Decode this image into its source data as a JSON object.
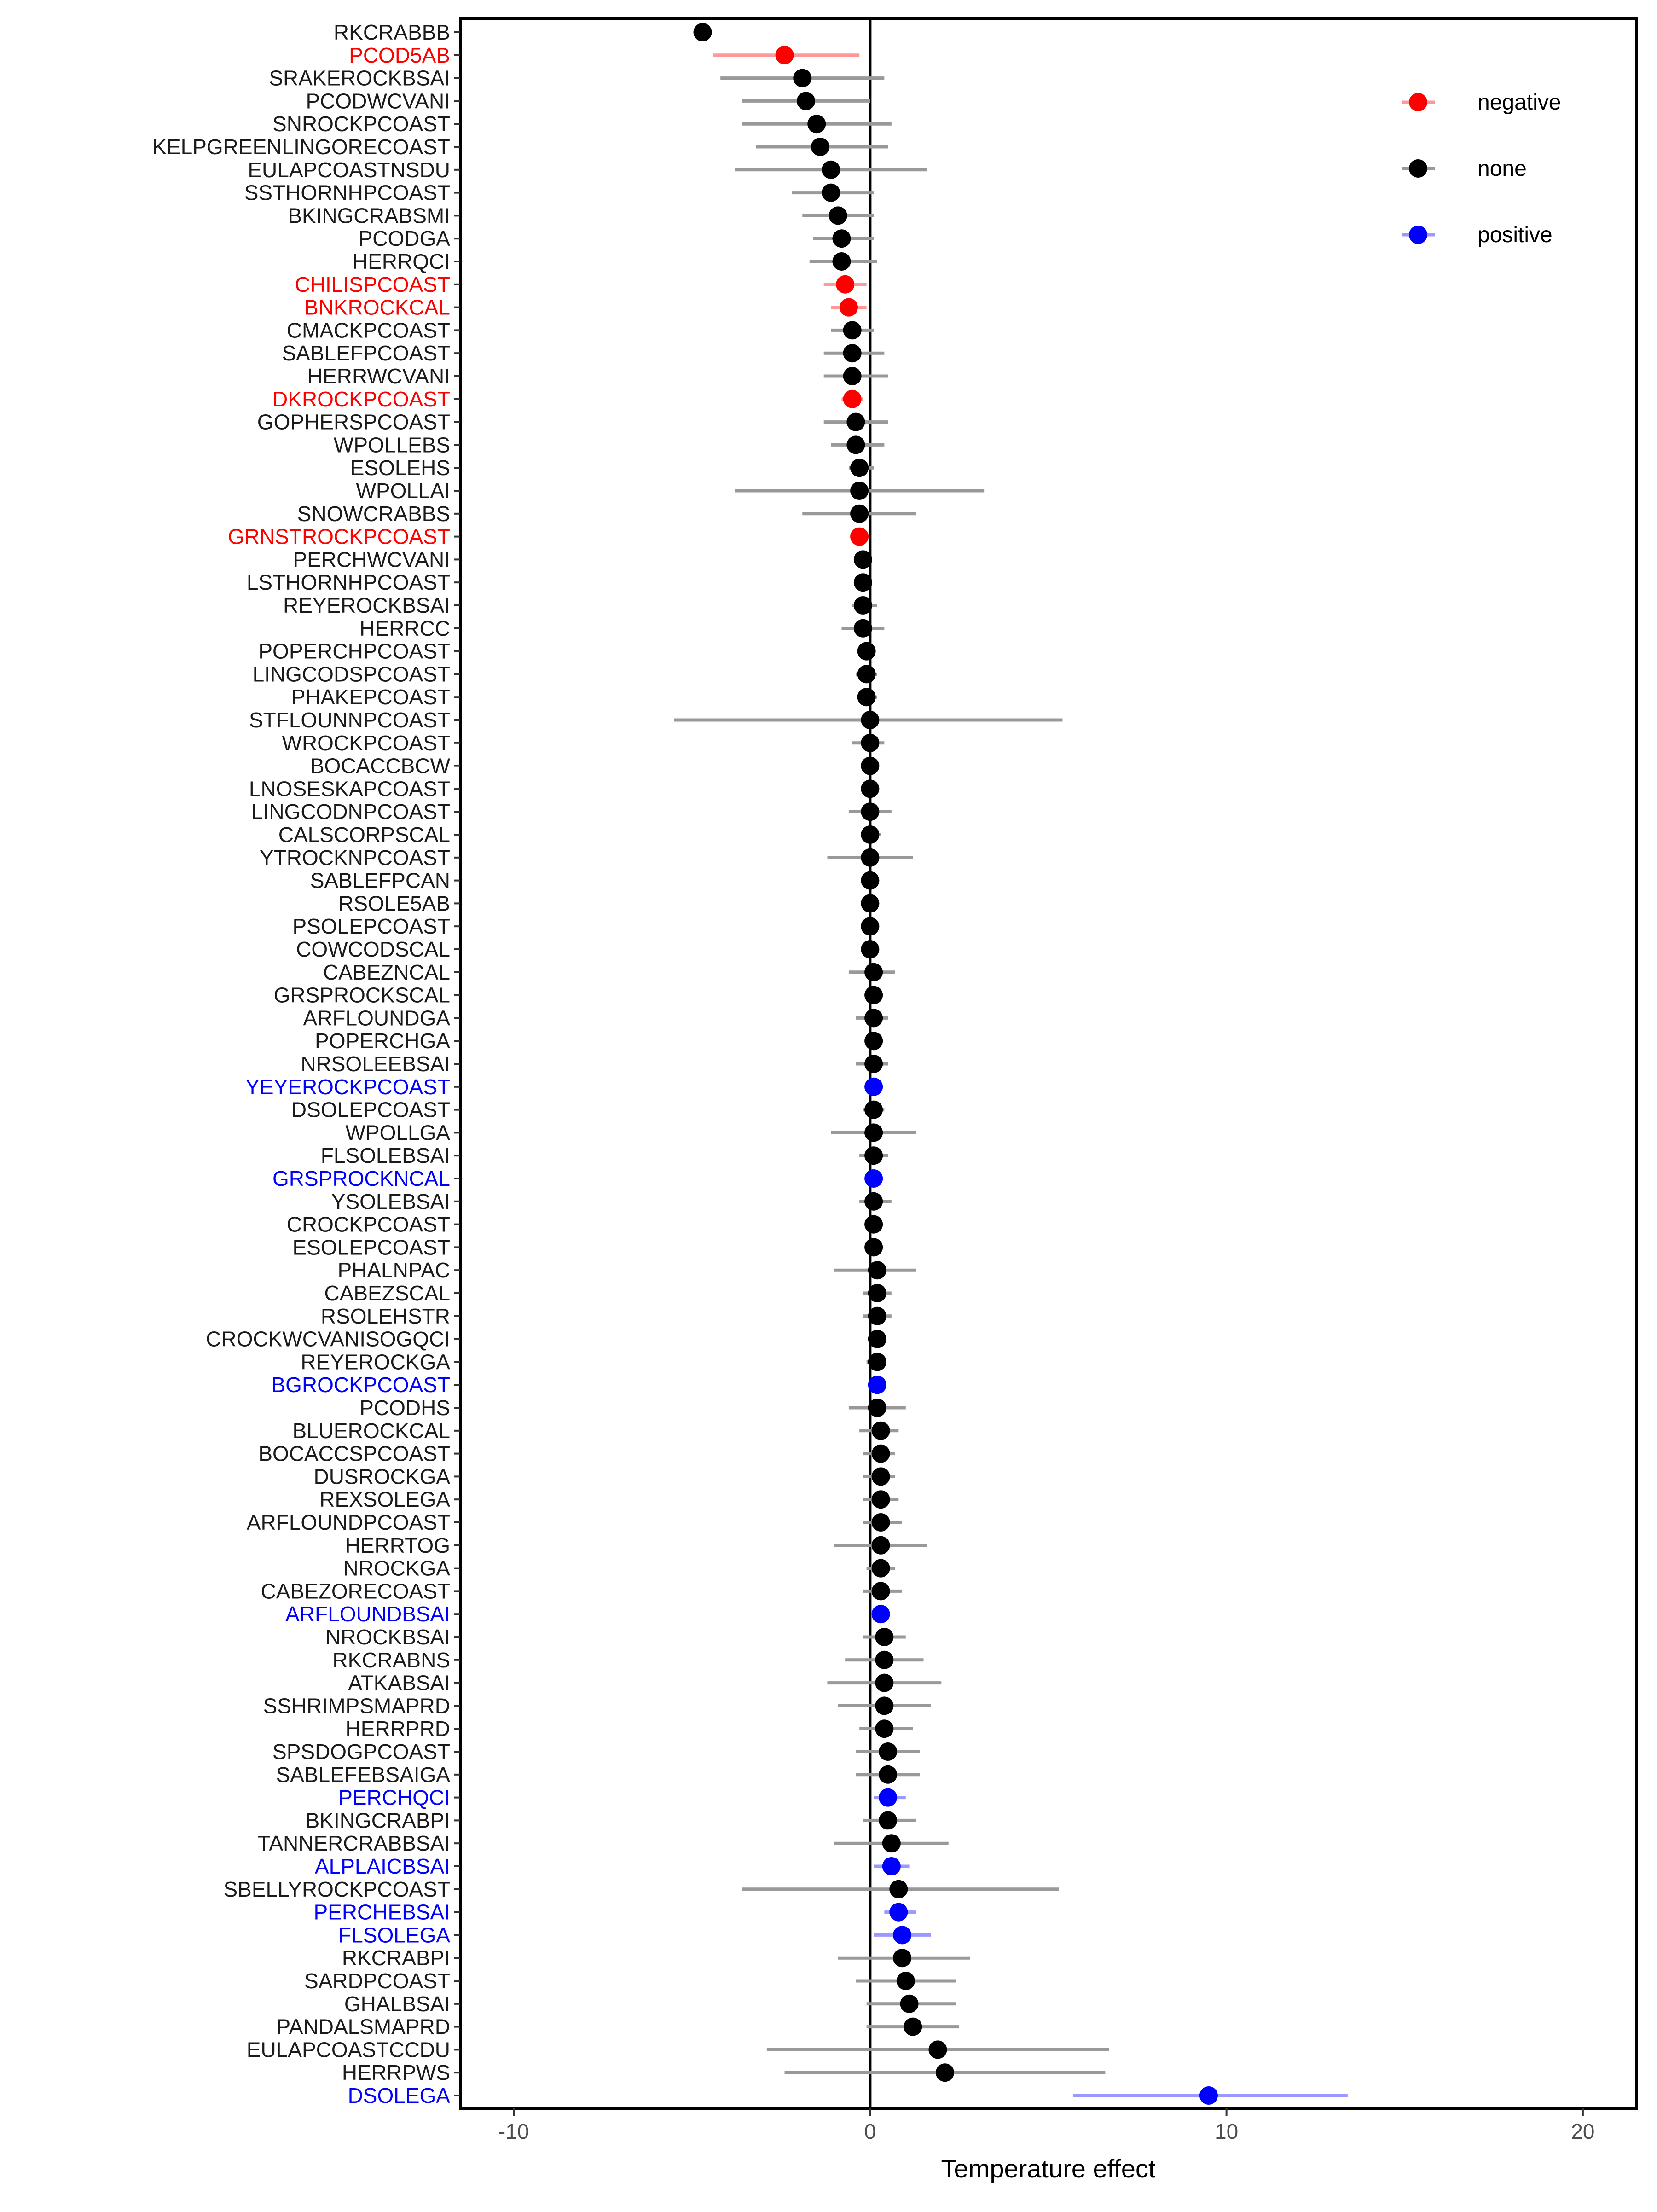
{
  "chart_data": {
    "type": "scatter",
    "subtype": "forest-plot",
    "title": "",
    "xlabel": "Temperature effect",
    "ylabel": "",
    "xlim": [
      -11.5,
      21.5
    ],
    "xticks": [
      -10,
      0,
      10,
      20
    ],
    "xtick_labels": [
      "-10",
      "0",
      "10",
      "20"
    ],
    "reference_line_x": 0,
    "grid": false,
    "legend_position": "top-right",
    "legend": [
      {
        "key": "negative",
        "label": "negative",
        "color": "#ff0000",
        "line_color": "#ff9999"
      },
      {
        "key": "none",
        "label": "none",
        "color": "#000000",
        "line_color": "#999999"
      },
      {
        "key": "positive",
        "label": "positive",
        "color": "#0000ff",
        "line_color": "#9999ff"
      }
    ],
    "points": [
      {
        "label": "RKCRABBB",
        "est": -4.7,
        "lo": -4.7,
        "hi": -4.7,
        "group": "none"
      },
      {
        "label": "PCOD5AB",
        "est": -2.4,
        "lo": -4.4,
        "hi": -0.3,
        "group": "negative"
      },
      {
        "label": "SRAKEROCKBSAI",
        "est": -1.9,
        "lo": -4.2,
        "hi": 0.4,
        "group": "none"
      },
      {
        "label": "PCODWCVANI",
        "est": -1.8,
        "lo": -3.6,
        "hi": 0.0,
        "group": "none"
      },
      {
        "label": "SNROCKPCOAST",
        "est": -1.5,
        "lo": -3.6,
        "hi": 0.6,
        "group": "none"
      },
      {
        "label": "KELPGREENLINGORECOAST",
        "est": -1.4,
        "lo": -3.2,
        "hi": 0.5,
        "group": "none"
      },
      {
        "label": "EULAPCOASTNSDU",
        "est": -1.1,
        "lo": -3.8,
        "hi": 1.6,
        "group": "none"
      },
      {
        "label": "SSTHORNHPCOAST",
        "est": -1.1,
        "lo": -2.2,
        "hi": 0.1,
        "group": "none"
      },
      {
        "label": "BKINGCRABSMI",
        "est": -0.9,
        "lo": -1.9,
        "hi": 0.1,
        "group": "none"
      },
      {
        "label": "PCODGA",
        "est": -0.8,
        "lo": -1.6,
        "hi": 0.1,
        "group": "none"
      },
      {
        "label": "HERRQCI",
        "est": -0.8,
        "lo": -1.7,
        "hi": 0.2,
        "group": "none"
      },
      {
        "label": "CHILISPCOAST",
        "est": -0.7,
        "lo": -1.3,
        "hi": -0.1,
        "group": "negative"
      },
      {
        "label": "BNKROCKCAL",
        "est": -0.6,
        "lo": -1.1,
        "hi": -0.1,
        "group": "negative"
      },
      {
        "label": "CMACKPCOAST",
        "est": -0.5,
        "lo": -1.1,
        "hi": 0.1,
        "group": "none"
      },
      {
        "label": "SABLEFPCOAST",
        "est": -0.5,
        "lo": -1.3,
        "hi": 0.4,
        "group": "none"
      },
      {
        "label": "HERRWCVANI",
        "est": -0.5,
        "lo": -1.3,
        "hi": 0.5,
        "group": "none"
      },
      {
        "label": "DKROCKPCOAST",
        "est": -0.5,
        "lo": -0.8,
        "hi": -0.2,
        "group": "negative"
      },
      {
        "label": "GOPHERSPCOAST",
        "est": -0.4,
        "lo": -1.3,
        "hi": 0.5,
        "group": "none"
      },
      {
        "label": "WPOLLEBS",
        "est": -0.4,
        "lo": -1.1,
        "hi": 0.4,
        "group": "none"
      },
      {
        "label": "ESOLEHS",
        "est": -0.3,
        "lo": -0.6,
        "hi": 0.1,
        "group": "none"
      },
      {
        "label": "WPOLLAI",
        "est": -0.3,
        "lo": -3.8,
        "hi": 3.2,
        "group": "none"
      },
      {
        "label": "SNOWCRABBS",
        "est": -0.3,
        "lo": -1.9,
        "hi": 1.3,
        "group": "none"
      },
      {
        "label": "GRNSTROCKPCOAST",
        "est": -0.3,
        "lo": -0.4,
        "hi": -0.1,
        "group": "negative"
      },
      {
        "label": "PERCHWCVANI",
        "est": -0.2,
        "lo": -0.3,
        "hi": -0.1,
        "group": "none"
      },
      {
        "label": "LSTHORNHPCOAST",
        "est": -0.2,
        "lo": -0.4,
        "hi": 0.0,
        "group": "none"
      },
      {
        "label": "REYEROCKBSAI",
        "est": -0.2,
        "lo": -0.5,
        "hi": 0.2,
        "group": "none"
      },
      {
        "label": "HERRCC",
        "est": -0.2,
        "lo": -0.8,
        "hi": 0.4,
        "group": "none"
      },
      {
        "label": "POPERCHPCOAST",
        "est": -0.1,
        "lo": -0.3,
        "hi": 0.1,
        "group": "none"
      },
      {
        "label": "LINGCODSPCOAST",
        "est": -0.1,
        "lo": -0.4,
        "hi": 0.2,
        "group": "none"
      },
      {
        "label": "PHAKEPCOAST",
        "est": -0.1,
        "lo": -0.3,
        "hi": 0.2,
        "group": "none"
      },
      {
        "label": "STFLOUNNPCOAST",
        "est": 0.0,
        "lo": -5.5,
        "hi": 5.4,
        "group": "none"
      },
      {
        "label": "WROCKPCOAST",
        "est": 0.0,
        "lo": -0.5,
        "hi": 0.4,
        "group": "none"
      },
      {
        "label": "BOCACCBCW",
        "est": 0.0,
        "lo": -0.1,
        "hi": 0.1,
        "group": "none"
      },
      {
        "label": "LNOSESKAPCOAST",
        "est": 0.0,
        "lo": -0.1,
        "hi": 0.1,
        "group": "none"
      },
      {
        "label": "LINGCODNPCOAST",
        "est": 0.0,
        "lo": -0.6,
        "hi": 0.6,
        "group": "none"
      },
      {
        "label": "CALSCORPSCAL",
        "est": 0.0,
        "lo": -0.2,
        "hi": 0.3,
        "group": "none"
      },
      {
        "label": "YTROCKNPCOAST",
        "est": 0.0,
        "lo": -1.2,
        "hi": 1.2,
        "group": "none"
      },
      {
        "label": "SABLEFPCAN",
        "est": 0.0,
        "lo": -0.1,
        "hi": 0.2,
        "group": "none"
      },
      {
        "label": "RSOLE5AB",
        "est": 0.0,
        "lo": -0.1,
        "hi": 0.1,
        "group": "none"
      },
      {
        "label": "PSOLEPCOAST",
        "est": 0.0,
        "lo": -0.1,
        "hi": 0.2,
        "group": "none"
      },
      {
        "label": "COWCODSCAL",
        "est": 0.0,
        "lo": -0.1,
        "hi": 0.2,
        "group": "none"
      },
      {
        "label": "CABEZNCAL",
        "est": 0.1,
        "lo": -0.6,
        "hi": 0.7,
        "group": "none"
      },
      {
        "label": "GRSPROCKSCAL",
        "est": 0.1,
        "lo": -0.1,
        "hi": 0.2,
        "group": "none"
      },
      {
        "label": "ARFLOUNDGA",
        "est": 0.1,
        "lo": -0.4,
        "hi": 0.5,
        "group": "none"
      },
      {
        "label": "POPERCHGA",
        "est": 0.1,
        "lo": -0.1,
        "hi": 0.2,
        "group": "none"
      },
      {
        "label": "NRSOLEEBSAI",
        "est": 0.1,
        "lo": -0.4,
        "hi": 0.5,
        "group": "none"
      },
      {
        "label": "YEYEROCKPCOAST",
        "est": 0.1,
        "lo": 0.0,
        "hi": 0.2,
        "group": "positive"
      },
      {
        "label": "DSOLEPCOAST",
        "est": 0.1,
        "lo": -0.2,
        "hi": 0.4,
        "group": "none"
      },
      {
        "label": "WPOLLGA",
        "est": 0.1,
        "lo": -1.1,
        "hi": 1.3,
        "group": "none"
      },
      {
        "label": "FLSOLEBSAI",
        "est": 0.1,
        "lo": -0.3,
        "hi": 0.5,
        "group": "none"
      },
      {
        "label": "GRSPROCKNCAL",
        "est": 0.1,
        "lo": 0.0,
        "hi": 0.2,
        "group": "positive"
      },
      {
        "label": "YSOLEBSAI",
        "est": 0.1,
        "lo": -0.3,
        "hi": 0.6,
        "group": "none"
      },
      {
        "label": "CROCKPCOAST",
        "est": 0.1,
        "lo": 0.0,
        "hi": 0.3,
        "group": "none"
      },
      {
        "label": "ESOLEPCOAST",
        "est": 0.1,
        "lo": 0.0,
        "hi": 0.3,
        "group": "none"
      },
      {
        "label": "PHALNPAC",
        "est": 0.2,
        "lo": -1.0,
        "hi": 1.3,
        "group": "none"
      },
      {
        "label": "CABEZSCAL",
        "est": 0.2,
        "lo": -0.2,
        "hi": 0.6,
        "group": "none"
      },
      {
        "label": "RSOLEHSTR",
        "est": 0.2,
        "lo": -0.2,
        "hi": 0.6,
        "group": "none"
      },
      {
        "label": "CROCKWCVANISOGQCI",
        "est": 0.2,
        "lo": 0.0,
        "hi": 0.4,
        "group": "none"
      },
      {
        "label": "REYEROCKGA",
        "est": 0.2,
        "lo": -0.1,
        "hi": 0.4,
        "group": "none"
      },
      {
        "label": "BGROCKPCOAST",
        "est": 0.2,
        "lo": 0.1,
        "hi": 0.4,
        "group": "positive"
      },
      {
        "label": "PCODHS",
        "est": 0.2,
        "lo": -0.6,
        "hi": 1.0,
        "group": "none"
      },
      {
        "label": "BLUEROCKCAL",
        "est": 0.3,
        "lo": -0.3,
        "hi": 0.8,
        "group": "none"
      },
      {
        "label": "BOCACCSPCOAST",
        "est": 0.3,
        "lo": -0.2,
        "hi": 0.7,
        "group": "none"
      },
      {
        "label": "DUSROCKGA",
        "est": 0.3,
        "lo": -0.2,
        "hi": 0.7,
        "group": "none"
      },
      {
        "label": "REXSOLEGA",
        "est": 0.3,
        "lo": -0.2,
        "hi": 0.8,
        "group": "none"
      },
      {
        "label": "ARFLOUNDPCOAST",
        "est": 0.3,
        "lo": -0.2,
        "hi": 0.9,
        "group": "none"
      },
      {
        "label": "HERRTOG",
        "est": 0.3,
        "lo": -1.0,
        "hi": 1.6,
        "group": "none"
      },
      {
        "label": "NROCKGA",
        "est": 0.3,
        "lo": -0.1,
        "hi": 0.7,
        "group": "none"
      },
      {
        "label": "CABEZORECOAST",
        "est": 0.3,
        "lo": -0.2,
        "hi": 0.9,
        "group": "none"
      },
      {
        "label": "ARFLOUNDBSAI",
        "est": 0.3,
        "lo": 0.2,
        "hi": 0.5,
        "group": "positive"
      },
      {
        "label": "NROCKBSAI",
        "est": 0.4,
        "lo": -0.2,
        "hi": 1.0,
        "group": "none"
      },
      {
        "label": "RKCRABNS",
        "est": 0.4,
        "lo": -0.7,
        "hi": 1.5,
        "group": "none"
      },
      {
        "label": "ATKABSAI",
        "est": 0.4,
        "lo": -1.2,
        "hi": 2.0,
        "group": "none"
      },
      {
        "label": "SSHRIMPSMAPRD",
        "est": 0.4,
        "lo": -0.9,
        "hi": 1.7,
        "group": "none"
      },
      {
        "label": "HERRPRD",
        "est": 0.4,
        "lo": -0.3,
        "hi": 1.2,
        "group": "none"
      },
      {
        "label": "SPSDOGPCOAST",
        "est": 0.5,
        "lo": -0.4,
        "hi": 1.4,
        "group": "none"
      },
      {
        "label": "SABLEFEBSAIGA",
        "est": 0.5,
        "lo": -0.4,
        "hi": 1.4,
        "group": "none"
      },
      {
        "label": "PERCHQCI",
        "est": 0.5,
        "lo": 0.1,
        "hi": 1.0,
        "group": "positive"
      },
      {
        "label": "BKINGCRABPI",
        "est": 0.5,
        "lo": -0.2,
        "hi": 1.3,
        "group": "none"
      },
      {
        "label": "TANNERCRABBSAI",
        "est": 0.6,
        "lo": -1.0,
        "hi": 2.2,
        "group": "none"
      },
      {
        "label": "ALPLAICBSAI",
        "est": 0.6,
        "lo": 0.1,
        "hi": 1.1,
        "group": "positive"
      },
      {
        "label": "SBELLYROCKPCOAST",
        "est": 0.8,
        "lo": -3.6,
        "hi": 5.3,
        "group": "none"
      },
      {
        "label": "PERCHEBSAI",
        "est": 0.8,
        "lo": 0.4,
        "hi": 1.3,
        "group": "positive"
      },
      {
        "label": "FLSOLEGA",
        "est": 0.9,
        "lo": 0.1,
        "hi": 1.7,
        "group": "positive"
      },
      {
        "label": "RKCRABPI",
        "est": 0.9,
        "lo": -0.9,
        "hi": 2.8,
        "group": "none"
      },
      {
        "label": "SARDPCOAST",
        "est": 1.0,
        "lo": -0.4,
        "hi": 2.4,
        "group": "none"
      },
      {
        "label": "GHALBSAI",
        "est": 1.1,
        "lo": -0.1,
        "hi": 2.4,
        "group": "none"
      },
      {
        "label": "PANDALSMAPRD",
        "est": 1.2,
        "lo": -0.1,
        "hi": 2.5,
        "group": "none"
      },
      {
        "label": "EULAPCOASTCCDU",
        "est": 1.9,
        "lo": -2.9,
        "hi": 6.7,
        "group": "none"
      },
      {
        "label": "HERRPWS",
        "est": 2.1,
        "lo": -2.4,
        "hi": 6.6,
        "group": "none"
      },
      {
        "label": "DSOLEGA",
        "est": 9.5,
        "lo": 5.7,
        "hi": 13.4,
        "group": "positive"
      }
    ]
  }
}
